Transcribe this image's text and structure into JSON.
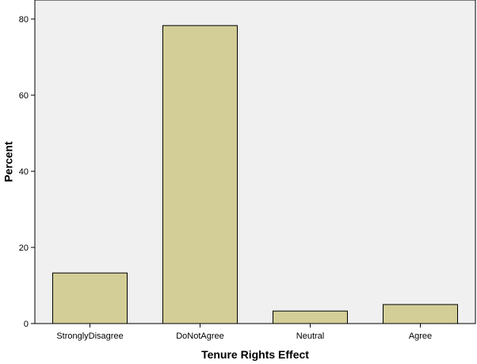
{
  "chart_data": {
    "type": "bar",
    "categories": [
      "StronglyDisagree",
      "DoNotAgree",
      "Neutral",
      "Agree"
    ],
    "values": [
      13.3,
      78.3,
      3.3,
      5.0
    ],
    "title": "",
    "xlabel": "Tenure Rights Effect",
    "ylabel": "Percent",
    "ylim": [
      0,
      85
    ],
    "yticks": [
      0,
      20,
      40,
      60,
      80
    ],
    "grid": false,
    "legend": "none",
    "colors": {
      "plot_background": "#f0f0f0",
      "bar_fill": "#d3ce97",
      "bar_stroke": "#000000",
      "frame": "#000000"
    }
  }
}
